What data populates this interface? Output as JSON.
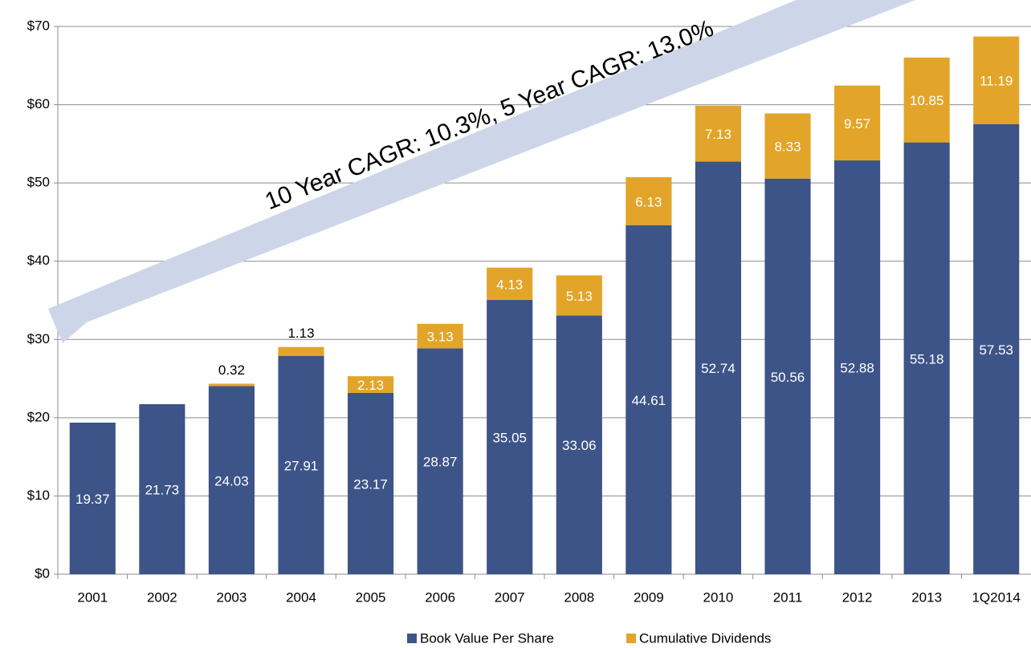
{
  "chart_data": {
    "type": "stacked_bar",
    "annotation": "10 Year CAGR: 10.3%, 5 Year CAGR: 13.0%",
    "categories": [
      "2001",
      "2002",
      "2003",
      "2004",
      "2005",
      "2006",
      "2007",
      "2008",
      "2009",
      "2010",
      "2011",
      "2012",
      "2013",
      "1Q2014"
    ],
    "series": [
      {
        "name": "Book Value Per Share",
        "color": "#3d5488",
        "values": [
          19.37,
          21.73,
          24.03,
          27.91,
          23.17,
          28.87,
          35.05,
          33.06,
          44.61,
          52.74,
          50.56,
          52.88,
          55.18,
          57.53
        ]
      },
      {
        "name": "Cumulative Dividends",
        "color": "#e2a52a",
        "values": [
          null,
          null,
          0.32,
          1.13,
          2.13,
          3.13,
          4.13,
          5.13,
          6.13,
          7.13,
          8.33,
          9.57,
          10.85,
          11.19
        ]
      }
    ],
    "ylim": [
      0,
      70
    ],
    "yticks": [
      {
        "value": 0,
        "label": "$0"
      },
      {
        "value": 10,
        "label": "$10"
      },
      {
        "value": 20,
        "label": "$20"
      },
      {
        "value": 30,
        "label": "$30"
      },
      {
        "value": 40,
        "label": "$40"
      },
      {
        "value": 50,
        "label": "$50"
      },
      {
        "value": 60,
        "label": "$60"
      },
      {
        "value": 70,
        "label": "$70"
      }
    ],
    "grid": true,
    "legend": "bottom"
  }
}
